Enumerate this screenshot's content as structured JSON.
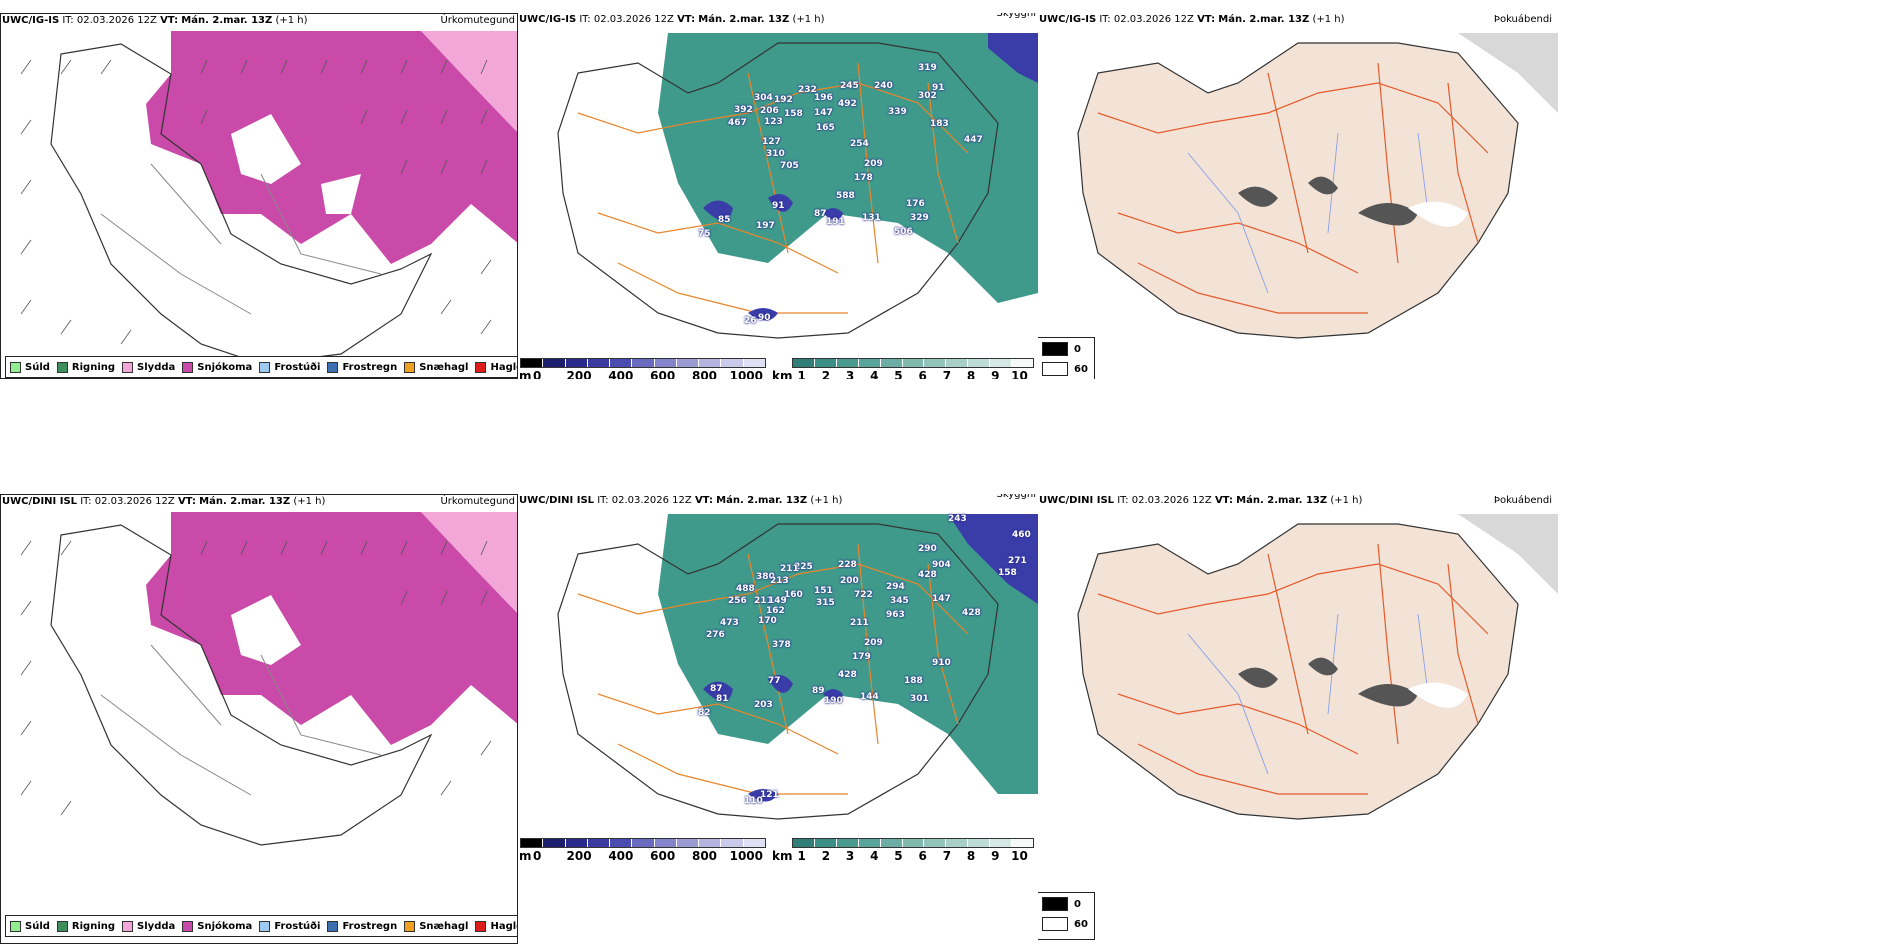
{
  "colors": {
    "snow": "#c94aa8",
    "sleet": "#f2a7d8",
    "land": "#f2e3d6",
    "road": "#e55a2b",
    "teal": "#3f9a8c",
    "cloudblue": "#3a3da8"
  },
  "rows": [
    {
      "model": "UWC/IG-IS",
      "it": "IT: 02.03.2026 12Z",
      "vt_label": "VT:",
      "vt": "Mán. 2.mar. 13Z",
      "lead": "(+1 h)",
      "panel_names": [
        "Úrkomutegund",
        "Skyggni",
        "Þokuábendi"
      ],
      "numbers": [
        "319",
        "240",
        "91",
        "302",
        "304",
        "192",
        "232",
        "245",
        "196",
        "492",
        "392",
        "206",
        "158",
        "147",
        "339",
        "183",
        "467",
        "123",
        "165",
        "447",
        "127",
        "254",
        "310",
        "209",
        "705",
        "178",
        "588",
        "176",
        "91",
        "87",
        "131",
        "329",
        "85",
        "191",
        "197",
        "506",
        "75",
        "90",
        "26"
      ]
    },
    {
      "model": "UWC/DINI ISL",
      "it": "IT: 02.03.2026 12Z",
      "vt_label": "VT:",
      "vt": "Mán. 2.mar. 13Z",
      "lead": "(+1 h)",
      "panel_names": [
        "Úrkomutegund",
        "Skyggni",
        "Þokuábendi"
      ],
      "numbers": [
        "243",
        "460",
        "290",
        "271",
        "904",
        "158",
        "225",
        "211",
        "228",
        "380",
        "200",
        "488",
        "213",
        "160",
        "151",
        "294",
        "256",
        "211",
        "722",
        "428",
        "149",
        "315",
        "345",
        "147",
        "162",
        "963",
        "428",
        "473",
        "170",
        "211",
        "276",
        "378",
        "209",
        "179",
        "910",
        "428",
        "188",
        "87",
        "77",
        "89",
        "81",
        "301",
        "144",
        "190",
        "82",
        "203",
        "121",
        "110"
      ]
    }
  ],
  "precip_legend": [
    {
      "label": "Súld",
      "color": "#90ee90"
    },
    {
      "label": "Rigning",
      "color": "#3e8e5e"
    },
    {
      "label": "Slydda",
      "color": "#f2a7d8"
    },
    {
      "label": "Snjókoma",
      "color": "#c94aa8"
    },
    {
      "label": "Frostúði",
      "color": "#9ec9f0"
    },
    {
      "label": "Frostregn",
      "color": "#3b6fb0"
    },
    {
      "label": "Snæhagl",
      "color": "#f0a020"
    },
    {
      "label": "Haglél",
      "color": "#dd1c1c"
    }
  ],
  "ceiling_bar": {
    "unit": "m",
    "ticks": [
      "0",
      "200",
      "400",
      "600",
      "800",
      "1000"
    ],
    "colors": [
      "#000000",
      "#1e1e6e",
      "#2a2a8a",
      "#3a3aa0",
      "#4b4bb0",
      "#6a6ac0",
      "#8484cc",
      "#9c9cd4",
      "#b4b4e0",
      "#cacaea",
      "#e0e0f4"
    ]
  },
  "visibility_bar": {
    "unit": "km",
    "ticks": [
      "1",
      "2",
      "3",
      "4",
      "5",
      "6",
      "7",
      "8",
      "9",
      "10"
    ],
    "colors": [
      "#2f7f78",
      "#3b8f86",
      "#4a9a90",
      "#5aa59b",
      "#6caea5",
      "#7fb9b0",
      "#93c4bc",
      "#a8d0c9",
      "#bedcd7",
      "#d4e8e4",
      "#f5faf9"
    ]
  },
  "coverage_legend": [
    {
      "label": "0",
      "color": "#000000"
    },
    {
      "label": "60",
      "color": "#ffffff"
    }
  ]
}
